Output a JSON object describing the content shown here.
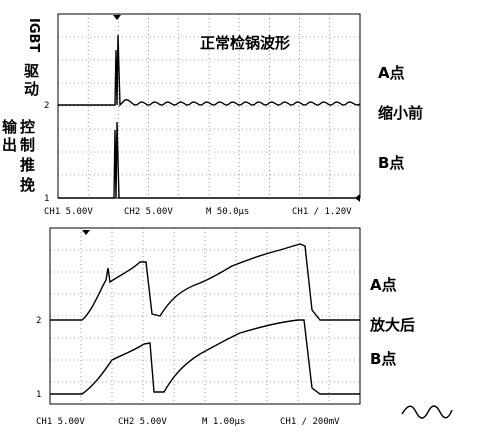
{
  "top_panel": {
    "title": "正常检锅波形",
    "igbt_label": [
      "IGBT",
      "驱",
      "动"
    ],
    "output_label": [
      "输",
      "控",
      "出",
      "制",
      "推",
      "挽"
    ],
    "a_label": "A点",
    "side_label": "缩小前",
    "b_label": "B点",
    "ch_markers": [
      "2",
      "1"
    ],
    "status": [
      "CH1  5.00V",
      "CH2  5.00V",
      "M 50.0µs",
      "CH1 ∕ 1.20V"
    ]
  },
  "bottom_panel": {
    "a_label": "A点",
    "side_label": "放大后",
    "b_label": "B点",
    "ch_markers": [
      "2",
      "1"
    ],
    "status": [
      "CH1  5.00V",
      "CH2  5.00V",
      "M 1.00µs",
      "CH1 ∕ 200mV"
    ]
  }
}
